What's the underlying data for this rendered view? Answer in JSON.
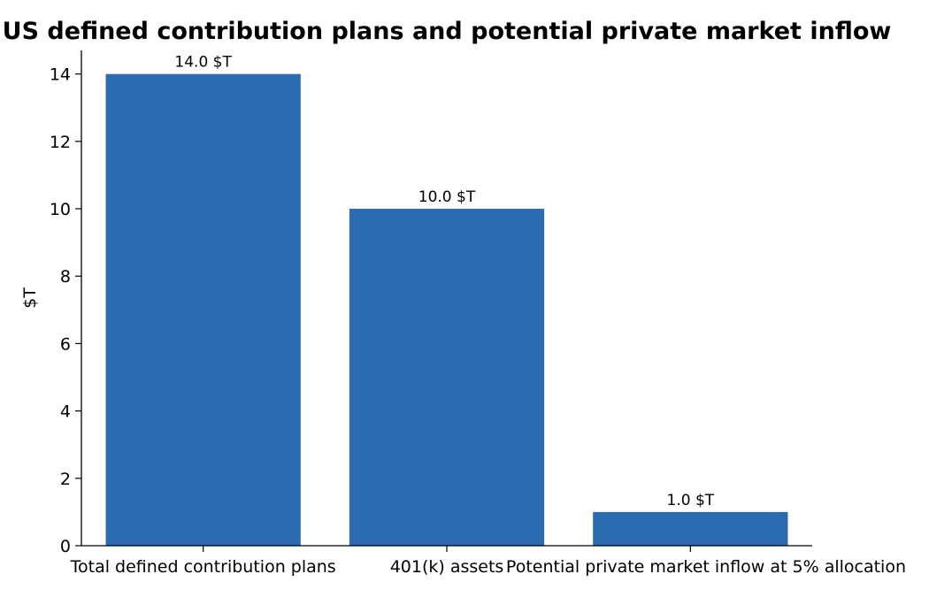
{
  "chart_data": {
    "type": "bar",
    "title": "US defined contribution plans and potential private market inflow",
    "xlabel": "",
    "ylabel": "$T",
    "categories": [
      "Total defined contribution plans",
      "401(k) assets",
      "Potential private market inflow at 5% allocation"
    ],
    "values": [
      14.0,
      10.0,
      1.0
    ],
    "data_labels": [
      "14.0 $T",
      "10.0 $T",
      "1.0 $T"
    ],
    "ylim": [
      0,
      14.7
    ],
    "yticks": [
      0,
      2,
      4,
      6,
      8,
      10,
      12,
      14
    ],
    "bar_color": "#2b6cb0",
    "grid": false,
    "legend": "none"
  }
}
